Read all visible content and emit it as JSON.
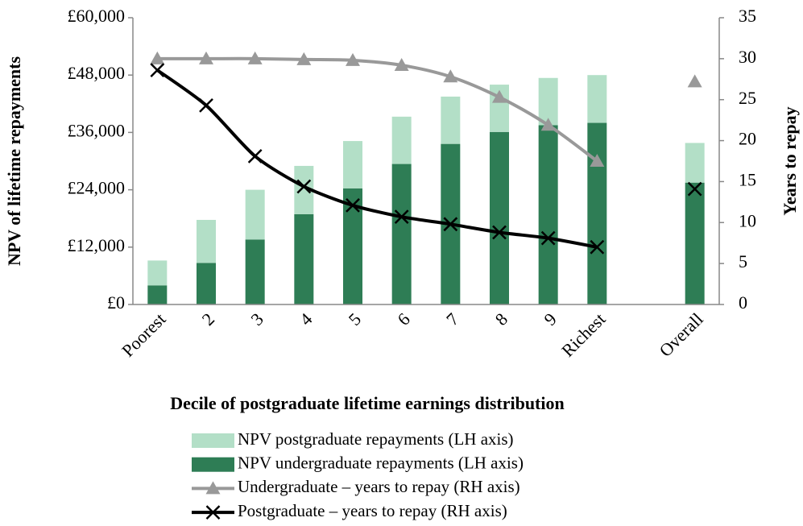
{
  "chart_data": {
    "type": "bar",
    "stacked": true,
    "x_label": "Decile of  postgraduate lifetime earnings distribution",
    "y_label": "NPV of lifetime repayments",
    "y2_label": "Years to repay",
    "categories": [
      "Poorest",
      "2",
      "3",
      "4",
      "5",
      "6",
      "7",
      "8",
      "9",
      "Richest",
      null,
      "Overall"
    ],
    "series": [
      {
        "name": "NPV postgraduate repayments (LH axis)",
        "type": "bar",
        "axis": "y",
        "color": "#b3dfc7",
        "values": [
          5200,
          9000,
          10400,
          10100,
          9900,
          9900,
          9900,
          9900,
          9900,
          10000,
          null,
          8300
        ]
      },
      {
        "name": "NPV undergraduate repayments (LH axis)",
        "type": "bar",
        "axis": "y",
        "color": "#2e7d55",
        "values": [
          4000,
          8700,
          13600,
          18900,
          24300,
          29400,
          33600,
          36100,
          37500,
          38000,
          null,
          25500
        ]
      },
      {
        "name": "Undergraduate – years to repay (RH axis)",
        "type": "line",
        "axis": "y2",
        "color": "#999999",
        "marker": "triangle",
        "values": [
          30,
          30,
          30,
          29.9,
          29.8,
          29.2,
          27.8,
          25.3,
          21.9,
          17.5,
          null,
          27.2
        ]
      },
      {
        "name": "Postgraduate – years to repay (RH axis)",
        "type": "line",
        "axis": "y2",
        "color": "#000000",
        "marker": "x",
        "values": [
          28.6,
          24.3,
          18.1,
          14.4,
          12.1,
          10.7,
          9.8,
          8.8,
          8.1,
          7.0,
          null,
          14.1
        ]
      }
    ],
    "ylim": [
      0,
      60000
    ],
    "yticks": [
      {
        "value": 0,
        "label": "£0"
      },
      {
        "value": 12000,
        "label": "£12,000"
      },
      {
        "value": 24000,
        "label": "£24,000"
      },
      {
        "value": 36000,
        "label": "£36,000"
      },
      {
        "value": 48000,
        "label": "£48,000"
      },
      {
        "value": 60000,
        "label": "£60,000"
      }
    ],
    "y2lim": [
      0,
      35
    ],
    "y2ticks": [
      0,
      5,
      10,
      15,
      20,
      25,
      30,
      35
    ],
    "grid": false,
    "legend": "bottom"
  }
}
